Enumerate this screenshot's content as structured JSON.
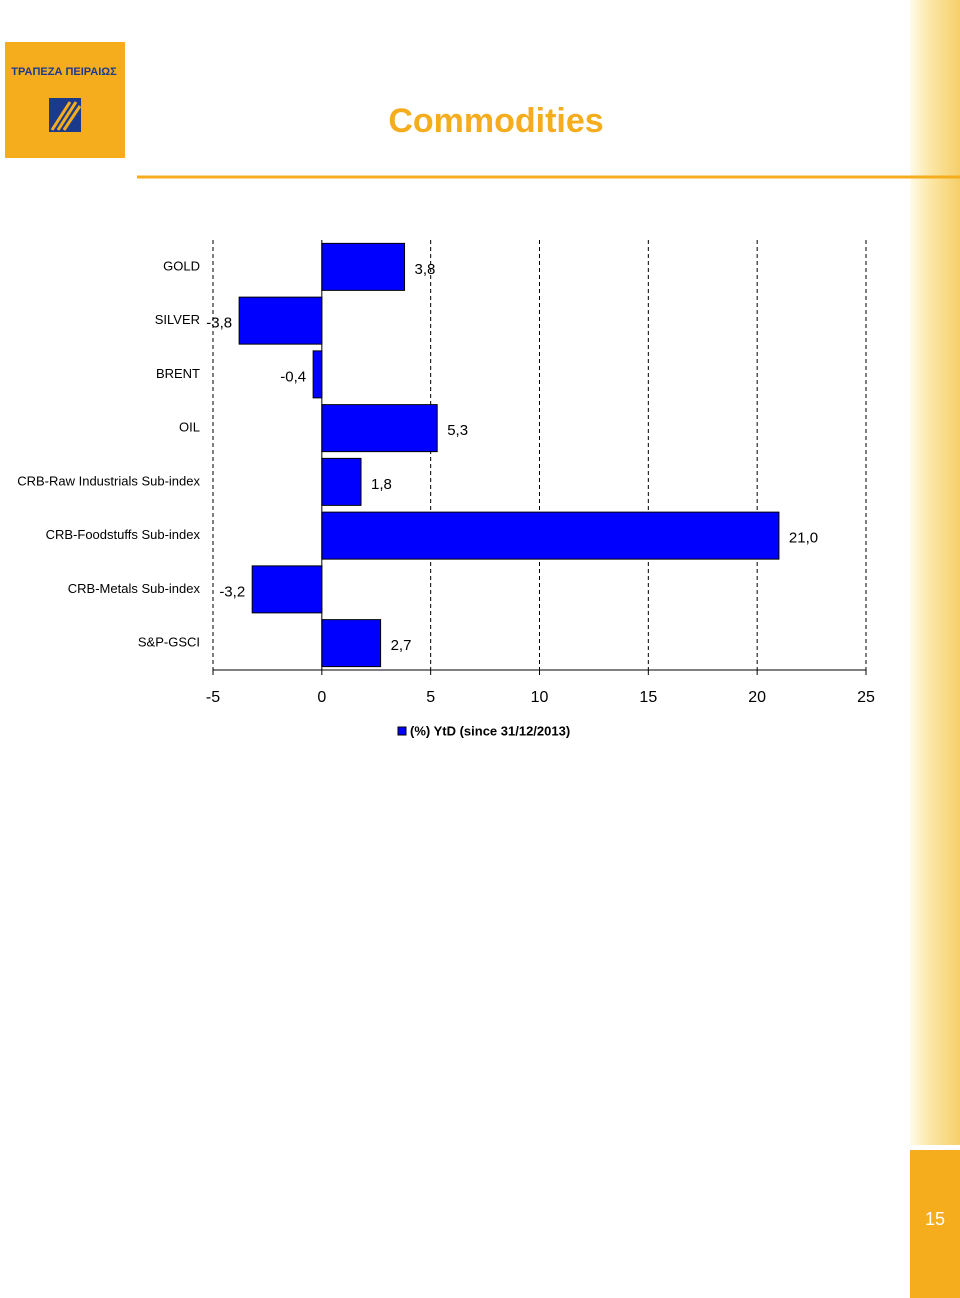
{
  "header": {
    "logo": "ΤΡΑΠΕΖΑ ΠΕΙΡΑΙΩΣ",
    "title": "Commodities"
  },
  "footer": {
    "page": "15"
  },
  "chart_data": {
    "type": "bar",
    "horizontal": true,
    "categories": [
      "GOLD",
      "SILVER",
      "BRENT",
      "OIL",
      "CRB-Raw Industrials Sub-index",
      "CRB-Foodstuffs Sub-index",
      "CRB-Metals Sub-index",
      "S&P-GSCI"
    ],
    "series": [
      {
        "name": "(%) YtD (since 31/12/2013)",
        "color": "#0000ff",
        "values": [
          3.8,
          -3.8,
          -0.4,
          5.3,
          1.8,
          21.0,
          -3.2,
          2.7
        ],
        "value_labels": [
          "3,8",
          "-3,8",
          "-0,4",
          "5,3",
          "1,8",
          "21,0",
          "-3,2",
          "2,7"
        ]
      }
    ],
    "xlim": [
      -5,
      25
    ],
    "xticks": [
      -5,
      0,
      5,
      10,
      15,
      20,
      25
    ],
    "grid": true
  }
}
